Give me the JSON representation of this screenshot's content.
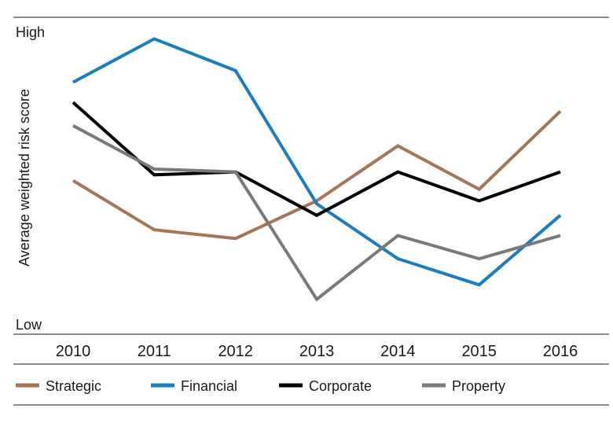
{
  "chart_data": {
    "type": "line",
    "title": "",
    "xlabel": "",
    "ylabel": "Average weighted risk score",
    "ylim": [
      0,
      100
    ],
    "y_high_label": "High",
    "y_low_label": "Low",
    "categories": [
      "2010",
      "2011",
      "2012",
      "2013",
      "2014",
      "2015",
      "2016"
    ],
    "legend_position": "bottom",
    "grid": false,
    "series": [
      {
        "name": "Strategic",
        "color": "#a57556",
        "values": [
          49,
          32,
          29,
          42,
          61,
          46,
          73
        ]
      },
      {
        "name": "Financial",
        "color": "#1a7dc0",
        "values": [
          83,
          98,
          87,
          41,
          22,
          13,
          37
        ]
      },
      {
        "name": "Corporate",
        "color": "#000000",
        "values": [
          76,
          51,
          52,
          37,
          52,
          42,
          52
        ]
      },
      {
        "name": "Property",
        "color": "#7a7a7a",
        "values": [
          68,
          53,
          52,
          8,
          30,
          22,
          30
        ]
      }
    ]
  }
}
